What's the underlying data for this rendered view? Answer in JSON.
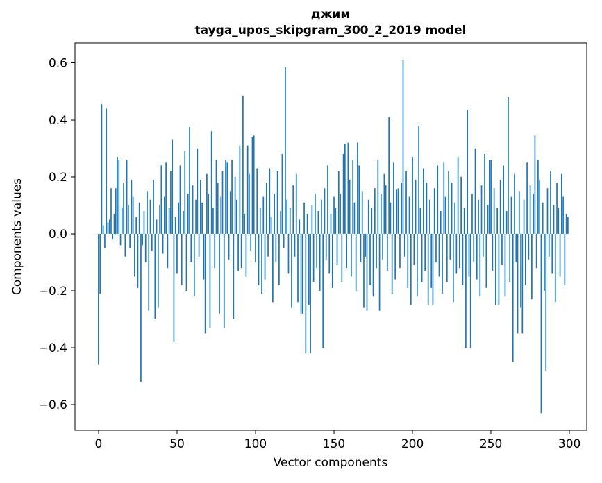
{
  "chart_data": {
    "type": "bar",
    "title": "джим\ntayga_upos_skipgram_300_2_2019 model",
    "title_line1": "джим",
    "title_line2": "tayga_upos_skipgram_300_2_2019 model",
    "xlabel": "Vector components",
    "ylabel": "Components values",
    "bar_color": "#1f77b4",
    "xlim": [
      -15,
      311
    ],
    "ylim": [
      -0.69,
      0.67
    ],
    "xticks": [
      0,
      50,
      100,
      150,
      200,
      250,
      300
    ],
    "xtick_labels": [
      "0",
      "50",
      "100",
      "150",
      "200",
      "250",
      "300"
    ],
    "yticks": [
      0.6,
      0.4,
      0.2,
      0.0,
      -0.2,
      -0.4,
      -0.6
    ],
    "ytick_labels": [
      "0.6",
      "0.4",
      "0.2",
      "0.0",
      "−0.2",
      "−0.4",
      "−0.6"
    ],
    "n_components": 300,
    "values": [
      -0.46,
      -0.21,
      0.455,
      0.03,
      -0.05,
      0.44,
      0.04,
      0.05,
      0.16,
      -0.02,
      0.07,
      0.16,
      0.27,
      0.26,
      -0.04,
      0.09,
      0.18,
      -0.08,
      0.26,
      0.1,
      -0.05,
      0.19,
      0.13,
      -0.15,
      0.06,
      -0.19,
      0.11,
      -0.52,
      -0.04,
      0.08,
      -0.1,
      0.15,
      -0.27,
      0.12,
      -0.06,
      0.19,
      -0.3,
      0.05,
      -0.26,
      0.1,
      0.24,
      -0.07,
      0.13,
      0.25,
      -0.12,
      0.09,
      0.22,
      0.33,
      -0.38,
      0.06,
      -0.14,
      0.11,
      0.24,
      -0.18,
      0.08,
      0.29,
      -0.2,
      0.14,
      0.375,
      -0.1,
      0.17,
      -0.22,
      0.12,
      0.3,
      -0.08,
      0.19,
      0.11,
      -0.16,
      -0.35,
      0.21,
      0.14,
      -0.33,
      0.36,
      0.09,
      -0.12,
      0.26,
      0.18,
      -0.28,
      0.13,
      0.22,
      -0.33,
      0.26,
      0.25,
      -0.09,
      0.15,
      0.26,
      -0.3,
      0.2,
      0.12,
      -0.13,
      0.31,
      -0.12,
      0.485,
      0.07,
      -0.15,
      0.31,
      0.21,
      -0.06,
      0.34,
      0.345,
      -0.1,
      0.23,
      -0.18,
      0.09,
      -0.21,
      0.13,
      -0.16,
      0.18,
      -0.08,
      0.23,
      0.06,
      -0.24,
      0.14,
      -0.1,
      0.22,
      -0.18,
      0.08,
      0.28,
      -0.05,
      0.585,
      0.12,
      -0.14,
      0.09,
      -0.26,
      0.17,
      -0.08,
      0.21,
      -0.24,
      0.05,
      -0.28,
      -0.28,
      0.11,
      -0.42,
      0.07,
      -0.25,
      -0.42,
      0.1,
      -0.17,
      0.14,
      -0.12,
      0.08,
      -0.2,
      0.12,
      -0.4,
      0.16,
      -0.09,
      0.24,
      -0.14,
      0.07,
      -0.19,
      0.13,
      0.09,
      -0.11,
      0.22,
      0.14,
      -0.17,
      0.28,
      0.315,
      -0.12,
      0.32,
      0.19,
      -0.15,
      0.26,
      0.11,
      -0.2,
      0.32,
      0.24,
      -0.1,
      0.15,
      -0.26,
      -0.08,
      -0.27,
      0.12,
      -0.18,
      0.09,
      -0.22,
      0.16,
      -0.12,
      0.26,
      -0.27,
      0.14,
      -0.09,
      0.21,
      0.17,
      -0.13,
      0.41,
      0.11,
      -0.21,
      0.25,
      -0.16,
      0.155,
      0.16,
      -0.12,
      0.18,
      0.61,
      -0.08,
      0.22,
      -0.19,
      0.13,
      -0.25,
      0.27,
      -0.11,
      0.19,
      -0.22,
      0.38,
      0.09,
      -0.17,
      0.23,
      -0.13,
      0.18,
      -0.25,
      0.12,
      -0.19,
      -0.25,
      0.16,
      -0.1,
      0.24,
      -0.15,
      0.08,
      -0.21,
      0.25,
      0.13,
      -0.17,
      0.22,
      -0.09,
      0.18,
      -0.24,
      0.11,
      -0.14,
      0.27,
      -0.12,
      0.2,
      -0.18,
      0.09,
      -0.4,
      0.435,
      -0.15,
      -0.4,
      0.14,
      -0.1,
      0.3,
      -0.16,
      0.12,
      -0.22,
      0.17,
      -0.08,
      0.28,
      -0.19,
      0.1,
      0.26,
      0.26,
      -0.13,
      0.16,
      -0.25,
      0.09,
      -0.25,
      0.19,
      -0.11,
      0.24,
      -0.22,
      0.08,
      0.48,
      -0.17,
      0.13,
      -0.45,
      0.21,
      -0.1,
      -0.35,
      0.15,
      -0.26,
      -0.35,
      0.12,
      -0.18,
      0.25,
      -0.09,
      0.17,
      -0.23,
      0.14,
      0.345,
      -0.12,
      0.26,
      0.19,
      -0.63,
      0.11,
      -0.2,
      -0.48,
      0.16,
      -0.08,
      0.22,
      -0.14,
      0.1,
      -0.24,
      0.18,
      0.09,
      -0.15,
      0.21,
      0.13,
      -0.18,
      0.07,
      0.06
    ]
  }
}
